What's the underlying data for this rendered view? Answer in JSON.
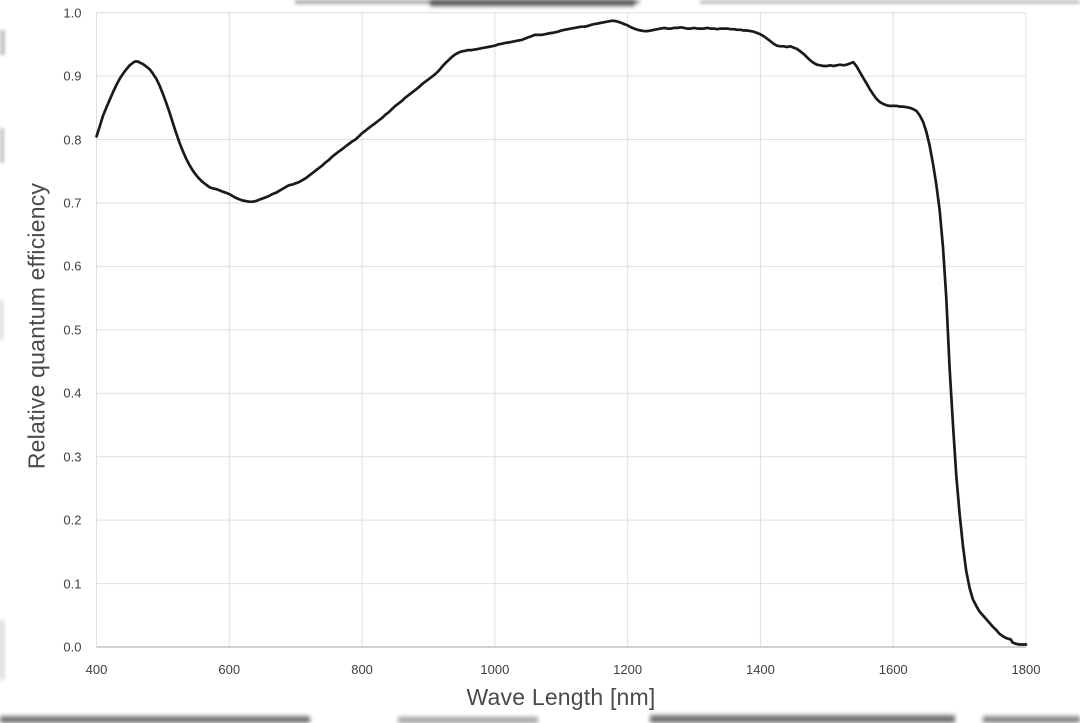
{
  "figure": {
    "background_color": "#ffffff",
    "line_color": "#1a1a1a",
    "grid_color": "#dfdfdf",
    "axis_color": "#c2c2c2",
    "text_color": "#3f3f3f"
  },
  "chart_data": {
    "type": "line",
    "title": "",
    "xlabel": "Wave Length [nm]",
    "ylabel": "Relative quantum efficiency",
    "xlim": [
      400,
      1800
    ],
    "ylim": [
      0.0,
      1.0
    ],
    "grid": true,
    "legend": "none",
    "x_ticks": {
      "values": [
        400,
        600,
        800,
        1000,
        1200,
        1400,
        1600,
        1800
      ],
      "labels": [
        "400",
        "600",
        "800",
        "1000",
        "1200",
        "1400",
        "1600",
        "1800"
      ]
    },
    "y_ticks": {
      "values": [
        0.0,
        0.1,
        0.2,
        0.3,
        0.4,
        0.5,
        0.6,
        0.7,
        0.8,
        0.9,
        1.0
      ],
      "labels": [
        "0.0",
        "0.1",
        "0.2",
        "0.3",
        "0.4",
        "0.5",
        "0.6",
        "0.7",
        "0.8",
        "0.9",
        "1.0"
      ]
    },
    "series": [
      {
        "name": "relative quantum efficiency",
        "points": [
          [
            400,
            0.805
          ],
          [
            405,
            0.821
          ],
          [
            410,
            0.838
          ],
          [
            415,
            0.851
          ],
          [
            420,
            0.863
          ],
          [
            425,
            0.875
          ],
          [
            430,
            0.886
          ],
          [
            435,
            0.896
          ],
          [
            440,
            0.904
          ],
          [
            445,
            0.911
          ],
          [
            450,
            0.917
          ],
          [
            455,
            0.921
          ],
          [
            458,
            0.923
          ],
          [
            462,
            0.923
          ],
          [
            466,
            0.921
          ],
          [
            470,
            0.919
          ],
          [
            475,
            0.915
          ],
          [
            480,
            0.911
          ],
          [
            485,
            0.904
          ],
          [
            490,
            0.896
          ],
          [
            495,
            0.885
          ],
          [
            500,
            0.872
          ],
          [
            505,
            0.858
          ],
          [
            510,
            0.843
          ],
          [
            515,
            0.826
          ],
          [
            520,
            0.81
          ],
          [
            525,
            0.795
          ],
          [
            530,
            0.782
          ],
          [
            535,
            0.77
          ],
          [
            540,
            0.76
          ],
          [
            545,
            0.751
          ],
          [
            550,
            0.744
          ],
          [
            555,
            0.738
          ],
          [
            560,
            0.733
          ],
          [
            565,
            0.729
          ],
          [
            570,
            0.725
          ],
          [
            575,
            0.723
          ],
          [
            580,
            0.722
          ],
          [
            585,
            0.72
          ],
          [
            590,
            0.718
          ],
          [
            595,
            0.716
          ],
          [
            600,
            0.714
          ],
          [
            605,
            0.711
          ],
          [
            610,
            0.708
          ],
          [
            615,
            0.706
          ],
          [
            620,
            0.704
          ],
          [
            625,
            0.703
          ],
          [
            630,
            0.702
          ],
          [
            635,
            0.702
          ],
          [
            640,
            0.703
          ],
          [
            645,
            0.705
          ],
          [
            650,
            0.707
          ],
          [
            655,
            0.709
          ],
          [
            660,
            0.711
          ],
          [
            665,
            0.714
          ],
          [
            670,
            0.716
          ],
          [
            675,
            0.719
          ],
          [
            680,
            0.722
          ],
          [
            685,
            0.725
          ],
          [
            690,
            0.728
          ],
          [
            695,
            0.729
          ],
          [
            700,
            0.731
          ],
          [
            705,
            0.733
          ],
          [
            710,
            0.736
          ],
          [
            715,
            0.739
          ],
          [
            720,
            0.743
          ],
          [
            725,
            0.747
          ],
          [
            730,
            0.751
          ],
          [
            735,
            0.755
          ],
          [
            740,
            0.759
          ],
          [
            745,
            0.764
          ],
          [
            750,
            0.768
          ],
          [
            755,
            0.773
          ],
          [
            760,
            0.777
          ],
          [
            765,
            0.781
          ],
          [
            770,
            0.785
          ],
          [
            775,
            0.789
          ],
          [
            780,
            0.793
          ],
          [
            785,
            0.797
          ],
          [
            790,
            0.8
          ],
          [
            795,
            0.805
          ],
          [
            800,
            0.81
          ],
          [
            805,
            0.814
          ],
          [
            810,
            0.818
          ],
          [
            815,
            0.822
          ],
          [
            820,
            0.826
          ],
          [
            825,
            0.83
          ],
          [
            830,
            0.834
          ],
          [
            835,
            0.839
          ],
          [
            840,
            0.843
          ],
          [
            845,
            0.848
          ],
          [
            850,
            0.853
          ],
          [
            855,
            0.857
          ],
          [
            860,
            0.861
          ],
          [
            865,
            0.866
          ],
          [
            870,
            0.87
          ],
          [
            875,
            0.874
          ],
          [
            880,
            0.878
          ],
          [
            885,
            0.882
          ],
          [
            890,
            0.887
          ],
          [
            895,
            0.891
          ],
          [
            900,
            0.895
          ],
          [
            905,
            0.899
          ],
          [
            910,
            0.903
          ],
          [
            915,
            0.908
          ],
          [
            920,
            0.914
          ],
          [
            925,
            0.92
          ],
          [
            930,
            0.925
          ],
          [
            935,
            0.93
          ],
          [
            940,
            0.934
          ],
          [
            945,
            0.937
          ],
          [
            950,
            0.939
          ],
          [
            955,
            0.94
          ],
          [
            960,
            0.941
          ],
          [
            965,
            0.941
          ],
          [
            970,
            0.942
          ],
          [
            975,
            0.943
          ],
          [
            980,
            0.944
          ],
          [
            985,
            0.945
          ],
          [
            990,
            0.946
          ],
          [
            995,
            0.947
          ],
          [
            1000,
            0.948
          ],
          [
            1005,
            0.95
          ],
          [
            1010,
            0.951
          ],
          [
            1015,
            0.952
          ],
          [
            1020,
            0.953
          ],
          [
            1025,
            0.954
          ],
          [
            1030,
            0.955
          ],
          [
            1035,
            0.956
          ],
          [
            1040,
            0.957
          ],
          [
            1045,
            0.959
          ],
          [
            1050,
            0.961
          ],
          [
            1055,
            0.963
          ],
          [
            1060,
            0.965
          ],
          [
            1065,
            0.965
          ],
          [
            1070,
            0.965
          ],
          [
            1075,
            0.966
          ],
          [
            1080,
            0.967
          ],
          [
            1085,
            0.968
          ],
          [
            1090,
            0.969
          ],
          [
            1095,
            0.97
          ],
          [
            1100,
            0.972
          ],
          [
            1105,
            0.973
          ],
          [
            1110,
            0.974
          ],
          [
            1115,
            0.975
          ],
          [
            1120,
            0.976
          ],
          [
            1125,
            0.977
          ],
          [
            1130,
            0.978
          ],
          [
            1135,
            0.978
          ],
          [
            1140,
            0.979
          ],
          [
            1145,
            0.981
          ],
          [
            1150,
            0.982
          ],
          [
            1155,
            0.983
          ],
          [
            1160,
            0.984
          ],
          [
            1165,
            0.985
          ],
          [
            1170,
            0.986
          ],
          [
            1175,
            0.987
          ],
          [
            1180,
            0.987
          ],
          [
            1185,
            0.986
          ],
          [
            1190,
            0.984
          ],
          [
            1195,
            0.982
          ],
          [
            1200,
            0.98
          ],
          [
            1205,
            0.977
          ],
          [
            1210,
            0.975
          ],
          [
            1215,
            0.973
          ],
          [
            1220,
            0.972
          ],
          [
            1225,
            0.971
          ],
          [
            1230,
            0.971
          ],
          [
            1235,
            0.972
          ],
          [
            1240,
            0.973
          ],
          [
            1245,
            0.974
          ],
          [
            1250,
            0.975
          ],
          [
            1255,
            0.976
          ],
          [
            1260,
            0.975
          ],
          [
            1265,
            0.975
          ],
          [
            1270,
            0.976
          ],
          [
            1275,
            0.976
          ],
          [
            1280,
            0.977
          ],
          [
            1285,
            0.976
          ],
          [
            1290,
            0.975
          ],
          [
            1295,
            0.975
          ],
          [
            1300,
            0.976
          ],
          [
            1305,
            0.975
          ],
          [
            1310,
            0.975
          ],
          [
            1315,
            0.975
          ],
          [
            1320,
            0.976
          ],
          [
            1325,
            0.975
          ],
          [
            1330,
            0.975
          ],
          [
            1335,
            0.974
          ],
          [
            1340,
            0.975
          ],
          [
            1345,
            0.975
          ],
          [
            1350,
            0.975
          ],
          [
            1355,
            0.974
          ],
          [
            1360,
            0.974
          ],
          [
            1365,
            0.973
          ],
          [
            1370,
            0.973
          ],
          [
            1375,
            0.972
          ],
          [
            1380,
            0.972
          ],
          [
            1385,
            0.971
          ],
          [
            1390,
            0.97
          ],
          [
            1395,
            0.968
          ],
          [
            1400,
            0.966
          ],
          [
            1405,
            0.963
          ],
          [
            1410,
            0.959
          ],
          [
            1415,
            0.955
          ],
          [
            1420,
            0.951
          ],
          [
            1425,
            0.948
          ],
          [
            1430,
            0.947
          ],
          [
            1435,
            0.947
          ],
          [
            1440,
            0.946
          ],
          [
            1445,
            0.947
          ],
          [
            1450,
            0.945
          ],
          [
            1455,
            0.943
          ],
          [
            1460,
            0.939
          ],
          [
            1465,
            0.935
          ],
          [
            1470,
            0.93
          ],
          [
            1475,
            0.925
          ],
          [
            1480,
            0.921
          ],
          [
            1485,
            0.918
          ],
          [
            1490,
            0.917
          ],
          [
            1495,
            0.916
          ],
          [
            1500,
            0.916
          ],
          [
            1505,
            0.917
          ],
          [
            1510,
            0.916
          ],
          [
            1515,
            0.917
          ],
          [
            1520,
            0.918
          ],
          [
            1525,
            0.917
          ],
          [
            1530,
            0.918
          ],
          [
            1535,
            0.92
          ],
          [
            1540,
            0.922
          ],
          [
            1545,
            0.915
          ],
          [
            1550,
            0.906
          ],
          [
            1555,
            0.897
          ],
          [
            1560,
            0.888
          ],
          [
            1565,
            0.879
          ],
          [
            1570,
            0.871
          ],
          [
            1575,
            0.864
          ],
          [
            1580,
            0.859
          ],
          [
            1585,
            0.856
          ],
          [
            1590,
            0.854
          ],
          [
            1595,
            0.853
          ],
          [
            1600,
            0.853
          ],
          [
            1605,
            0.853
          ],
          [
            1610,
            0.852
          ],
          [
            1615,
            0.852
          ],
          [
            1620,
            0.851
          ],
          [
            1625,
            0.85
          ],
          [
            1630,
            0.848
          ],
          [
            1635,
            0.845
          ],
          [
            1640,
            0.838
          ],
          [
            1645,
            0.828
          ],
          [
            1650,
            0.812
          ],
          [
            1655,
            0.79
          ],
          [
            1660,
            0.762
          ],
          [
            1665,
            0.728
          ],
          [
            1670,
            0.688
          ],
          [
            1675,
            0.63
          ],
          [
            1680,
            0.55
          ],
          [
            1685,
            0.44
          ],
          [
            1690,
            0.35
          ],
          [
            1695,
            0.27
          ],
          [
            1700,
            0.21
          ],
          [
            1705,
            0.16
          ],
          [
            1710,
            0.12
          ],
          [
            1715,
            0.093
          ],
          [
            1720,
            0.075
          ],
          [
            1725,
            0.065
          ],
          [
            1730,
            0.056
          ],
          [
            1735,
            0.05
          ],
          [
            1740,
            0.044
          ],
          [
            1745,
            0.038
          ],
          [
            1750,
            0.032
          ],
          [
            1755,
            0.027
          ],
          [
            1760,
            0.021
          ],
          [
            1765,
            0.017
          ],
          [
            1770,
            0.014
          ],
          [
            1774,
            0.013
          ],
          [
            1777,
            0.012
          ],
          [
            1780,
            0.007
          ],
          [
            1785,
            0.005
          ],
          [
            1790,
            0.004
          ],
          [
            1795,
            0.004
          ],
          [
            1800,
            0.004
          ]
        ]
      }
    ]
  }
}
